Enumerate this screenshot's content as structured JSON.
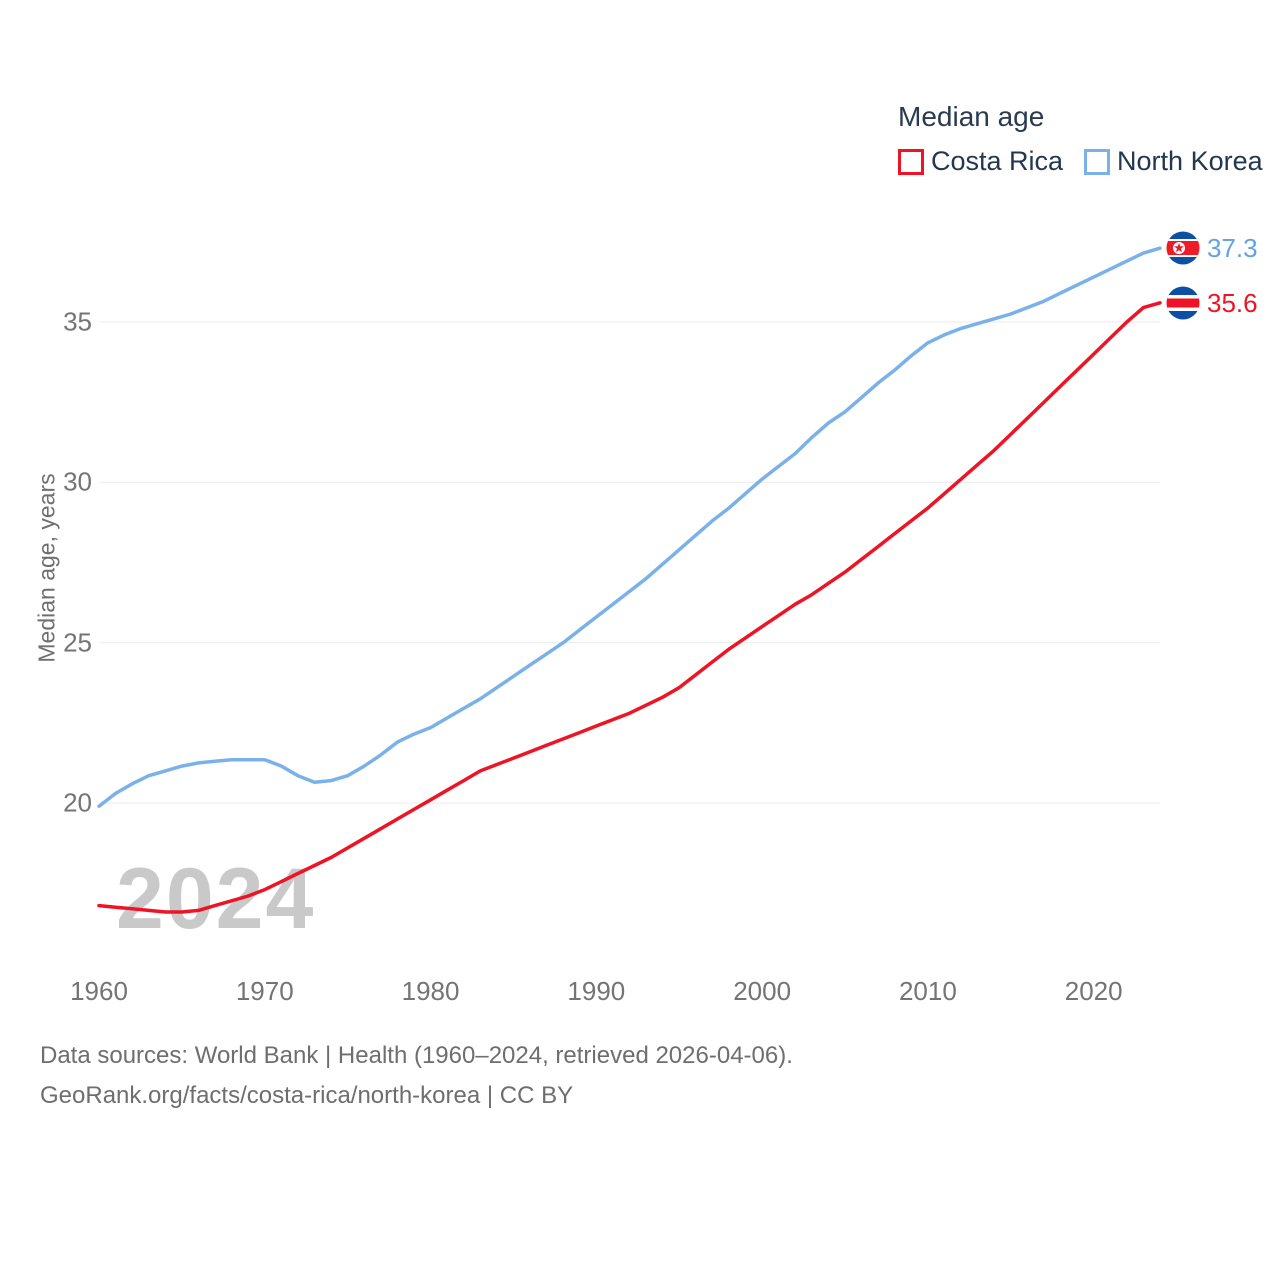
{
  "legend": {
    "title": "Median age",
    "items": [
      {
        "label": "Costa Rica",
        "color": "#ee1425"
      },
      {
        "label": "North Korea",
        "color": "#79b1e8"
      }
    ]
  },
  "axes": {
    "y_title": "Median age, years"
  },
  "watermark": "2024",
  "footer": {
    "line1": "Data sources: World Bank | Health (1960–2024, retrieved 2026-04-06).",
    "line2": "GeoRank.org/facts/costa-rica/north-korea | CC BY"
  },
  "icons": {
    "north_korea_flag": "north-korea-flag-icon",
    "costa_rica_flag": "costa-rica-flag-icon"
  },
  "chart_data": {
    "type": "line",
    "title": "Median age",
    "xlabel": "",
    "ylabel": "Median age, years",
    "x_range": [
      1960,
      2024
    ],
    "ylim": [
      16,
      38
    ],
    "xticks": [
      1960,
      1970,
      1980,
      1990,
      2000,
      2010,
      2020
    ],
    "yticks": [
      20,
      25,
      30,
      35
    ],
    "grid": "horizontal",
    "legend_position": "top-right",
    "series": [
      {
        "name": "Costa Rica",
        "color": "#ee1425",
        "end_label": "35.6",
        "end_value": 35.6,
        "x_start": 1960,
        "x_step": 1,
        "values": [
          16.8,
          16.75,
          16.7,
          16.65,
          16.6,
          16.6,
          16.65,
          16.8,
          16.95,
          17.1,
          17.3,
          17.55,
          17.8,
          18.05,
          18.3,
          18.6,
          18.9,
          19.2,
          19.5,
          19.8,
          20.1,
          20.4,
          20.7,
          21.0,
          21.2,
          21.4,
          21.6,
          21.8,
          22.0,
          22.2,
          22.4,
          22.6,
          22.8,
          23.05,
          23.3,
          23.6,
          24.0,
          24.4,
          24.8,
          25.15,
          25.5,
          25.85,
          26.2,
          26.5,
          26.85,
          27.2,
          27.6,
          28.0,
          28.4,
          28.8,
          29.2,
          29.65,
          30.1,
          30.55,
          31.0,
          31.5,
          32.0,
          32.5,
          33.0,
          33.5,
          34.0,
          34.5,
          35.0,
          35.45,
          35.6
        ]
      },
      {
        "name": "North Korea",
        "color": "#79b1e8",
        "end_label": "37.3",
        "end_value": 37.3,
        "x_start": 1960,
        "x_step": 1,
        "values": [
          19.9,
          20.3,
          20.6,
          20.85,
          21.0,
          21.15,
          21.25,
          21.3,
          21.35,
          21.35,
          21.35,
          21.15,
          20.85,
          20.65,
          20.7,
          20.85,
          21.15,
          21.5,
          21.9,
          22.15,
          22.35,
          22.65,
          22.95,
          23.25,
          23.6,
          23.95,
          24.3,
          24.65,
          25.0,
          25.4,
          25.8,
          26.2,
          26.6,
          27.0,
          27.45,
          27.9,
          28.35,
          28.8,
          29.2,
          29.65,
          30.1,
          30.5,
          30.9,
          31.4,
          31.85,
          32.2,
          32.65,
          33.1,
          33.5,
          33.95,
          34.35,
          34.6,
          34.8,
          34.95,
          35.1,
          35.25,
          35.45,
          35.65,
          35.9,
          36.15,
          36.4,
          36.65,
          36.9,
          37.15,
          37.3
        ]
      }
    ]
  }
}
